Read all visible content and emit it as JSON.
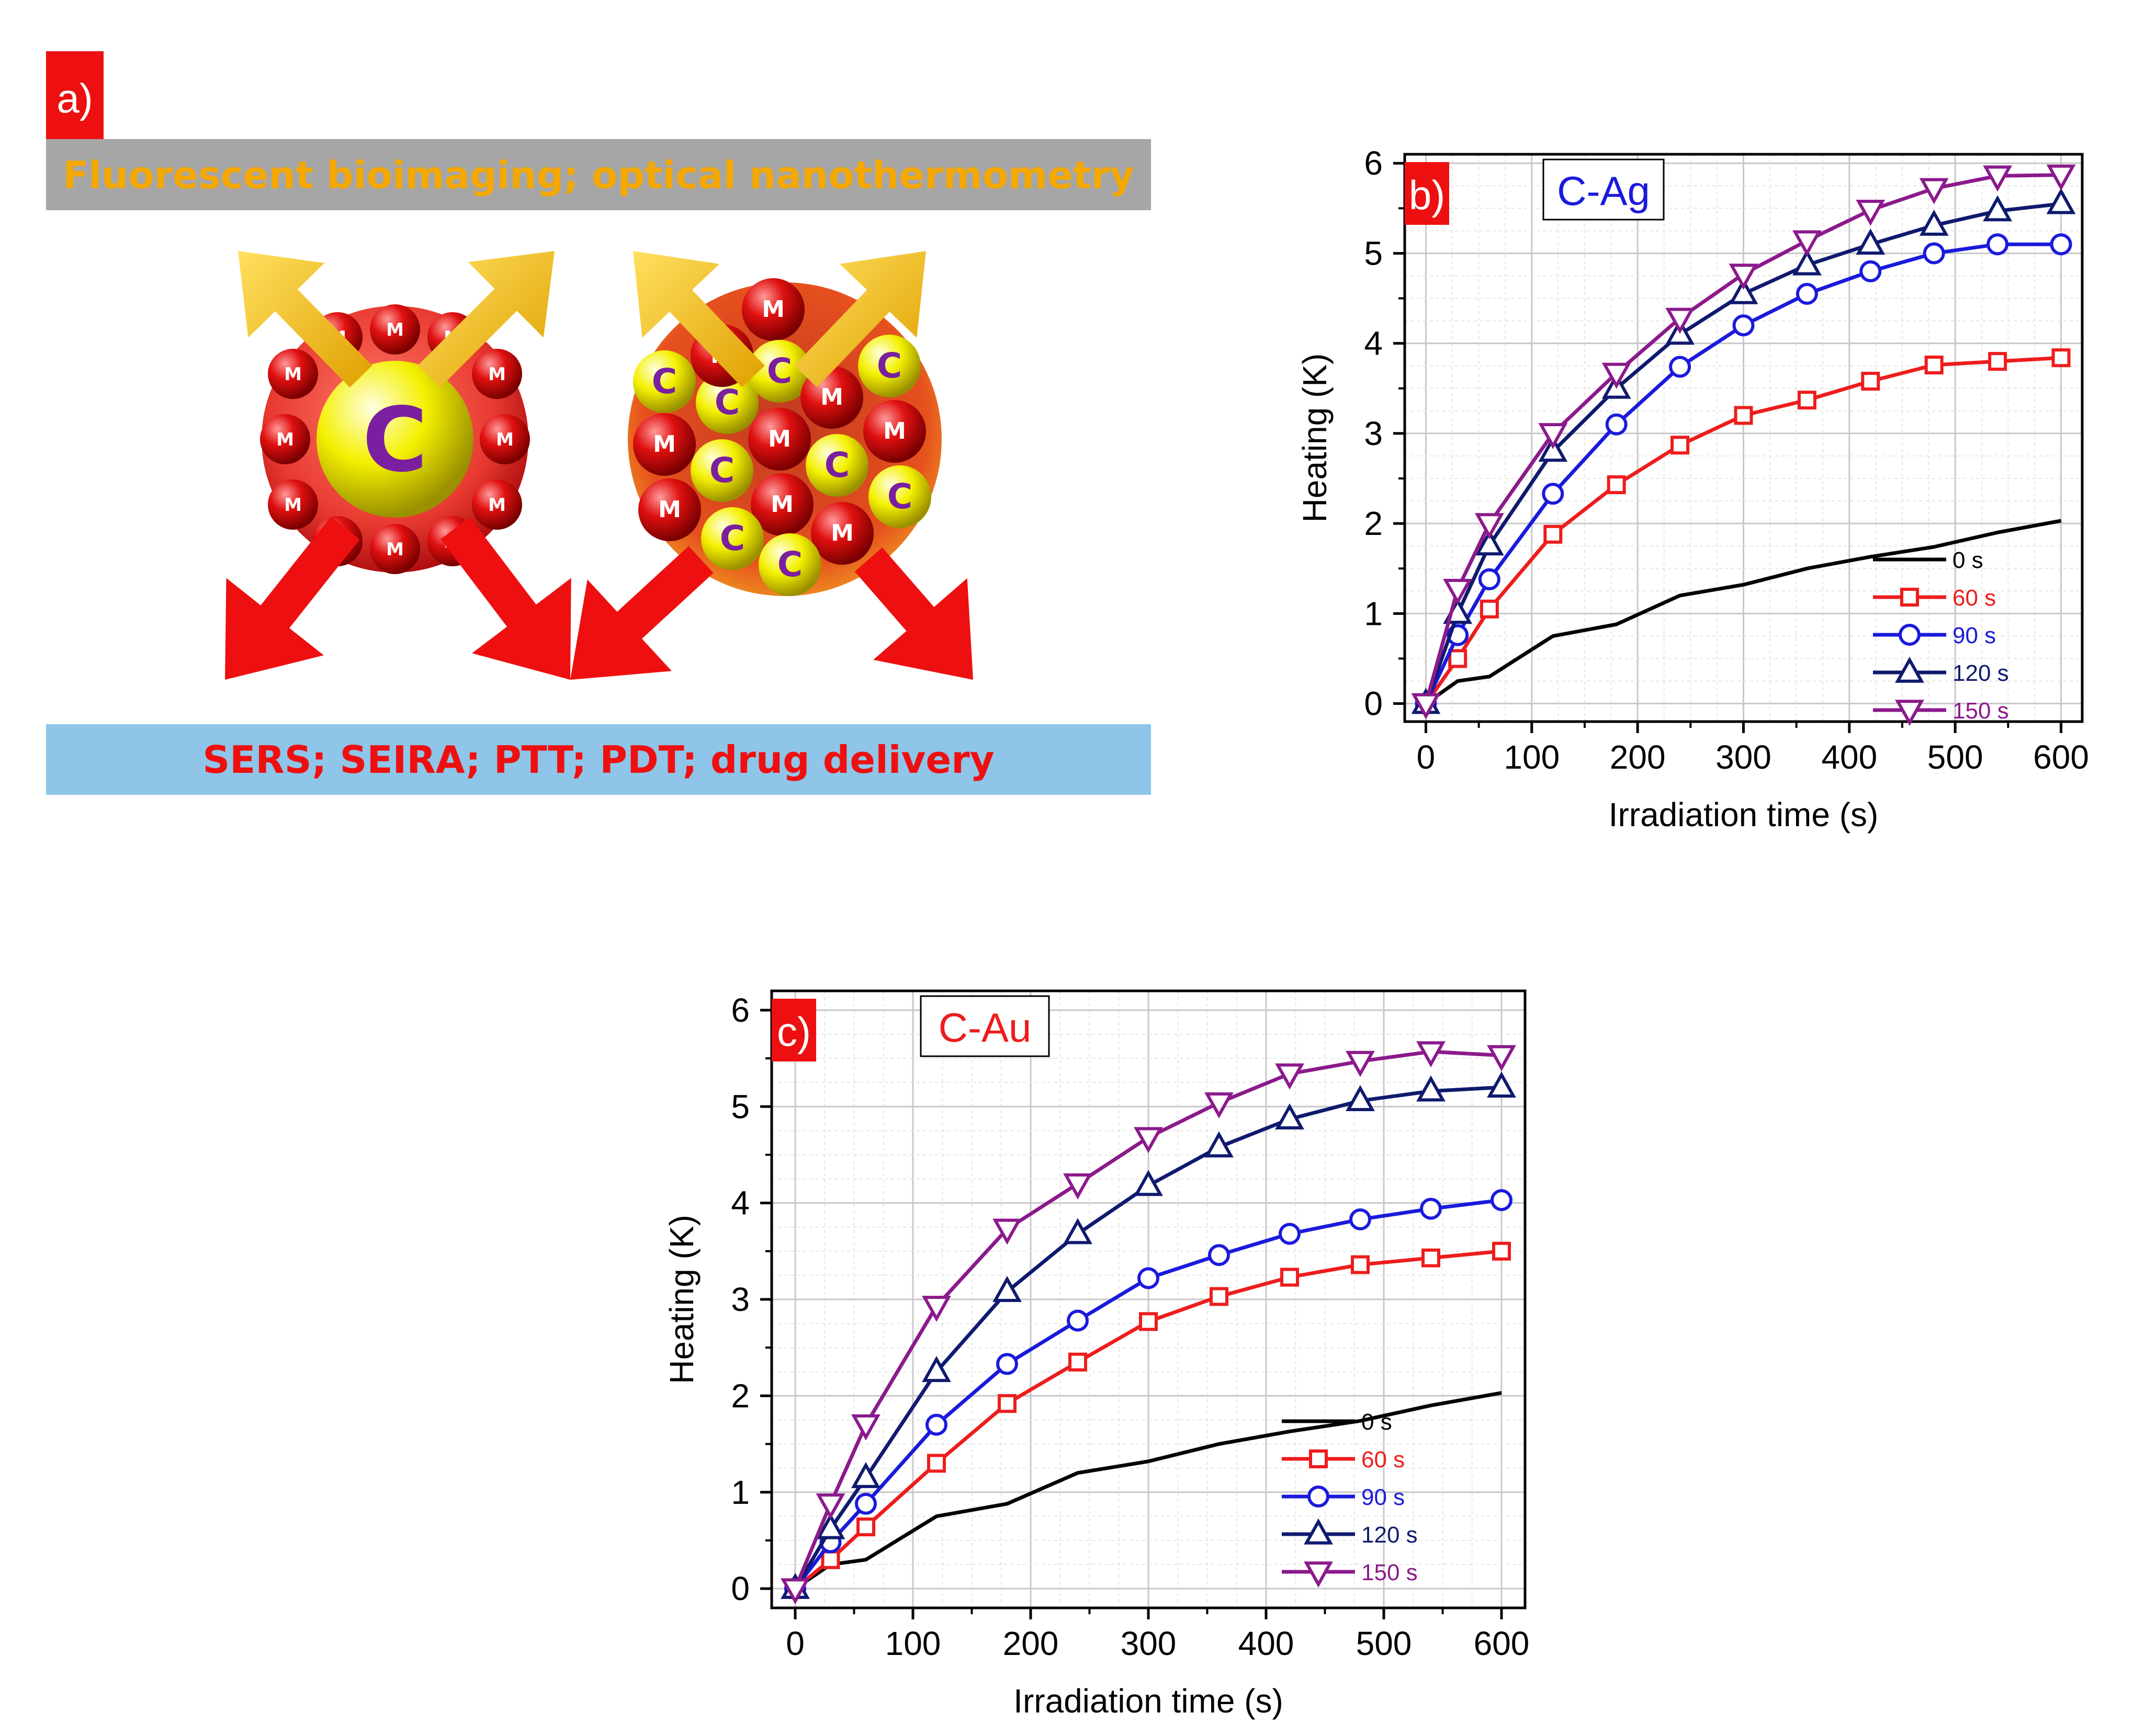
{
  "colors": {
    "s0": "#000000",
    "s60": "#ee1c1c",
    "s90": "#1a1adc",
    "s120": "#0f1a6e",
    "s150": "#8b1a8b",
    "tag_bg": "#ee1010",
    "banner_top_bg": "#a6a6a6",
    "banner_top_text": "#f5a800",
    "banner_bottom_bg": "#8ec5e8",
    "banner_bottom_text": "#ee1010"
  },
  "panel_a": {
    "tag": "a)",
    "top_banner": "Fluorescent bioimaging; optical nanothermometry",
    "bottom_banner": "SERS; SEIRA;  PTT; PDT; drug delivery",
    "core_letter": "C",
    "metal_letter": "M",
    "core_small_letter": "C"
  },
  "chart_data": [
    {
      "type": "line",
      "panel_tag": "b)",
      "title": "C-Ag",
      "xlabel": "Irradiation time (s)",
      "ylabel": "Heating (K)",
      "xlim": [
        -20,
        620
      ],
      "ylim": [
        -0.2,
        6.1
      ],
      "xticks": [
        0,
        100,
        200,
        300,
        400,
        500,
        600
      ],
      "yticks": [
        0,
        1,
        2,
        3,
        4,
        5,
        6
      ],
      "grid": true,
      "legend_position": "bottom-right",
      "series": [
        {
          "name": "0 s",
          "marker": "none",
          "x": [
            0,
            30,
            60,
            120,
            180,
            240,
            300,
            360,
            420,
            480,
            540,
            600
          ],
          "values": [
            0,
            0.25,
            0.3,
            0.75,
            0.88,
            1.2,
            1.32,
            1.5,
            1.63,
            1.74,
            1.9,
            2.03
          ]
        },
        {
          "name": "60 s",
          "marker": "square",
          "x": [
            0,
            30,
            60,
            120,
            180,
            240,
            300,
            360,
            420,
            480,
            540,
            600
          ],
          "values": [
            0,
            0.5,
            1.05,
            1.88,
            2.43,
            2.87,
            3.2,
            3.37,
            3.58,
            3.76,
            3.8,
            3.84
          ]
        },
        {
          "name": "90 s",
          "marker": "circle",
          "x": [
            0,
            30,
            60,
            120,
            180,
            240,
            300,
            360,
            420,
            480,
            540,
            600
          ],
          "values": [
            0,
            0.76,
            1.38,
            2.33,
            3.1,
            3.74,
            4.2,
            4.55,
            4.8,
            5.0,
            5.1,
            5.1
          ]
        },
        {
          "name": "120 s",
          "marker": "triangle-up",
          "x": [
            0,
            30,
            60,
            120,
            180,
            240,
            300,
            360,
            420,
            480,
            540,
            600
          ],
          "values": [
            0,
            1.0,
            1.76,
            2.8,
            3.5,
            4.1,
            4.55,
            4.87,
            5.1,
            5.31,
            5.47,
            5.55
          ]
        },
        {
          "name": "150 s",
          "marker": "triangle-down",
          "x": [
            0,
            30,
            60,
            120,
            180,
            240,
            300,
            360,
            420,
            480,
            540,
            600
          ],
          "values": [
            0,
            1.27,
            2.0,
            3.0,
            3.67,
            4.28,
            4.77,
            5.14,
            5.48,
            5.72,
            5.86,
            5.87
          ]
        }
      ]
    },
    {
      "type": "line",
      "panel_tag": "c)",
      "title": "C-Au",
      "xlabel": "Irradiation time (s)",
      "ylabel": "Heating (K)",
      "xlim": [
        -20,
        620
      ],
      "ylim": [
        -0.2,
        6.2
      ],
      "xticks": [
        0,
        100,
        200,
        300,
        400,
        500,
        600
      ],
      "yticks": [
        0,
        1,
        2,
        3,
        4,
        5,
        6
      ],
      "grid": true,
      "legend_position": "bottom-right",
      "series": [
        {
          "name": "0 s",
          "marker": "none",
          "x": [
            0,
            30,
            60,
            120,
            180,
            240,
            300,
            360,
            420,
            480,
            540,
            600
          ],
          "values": [
            0,
            0.25,
            0.3,
            0.75,
            0.88,
            1.2,
            1.32,
            1.5,
            1.63,
            1.74,
            1.9,
            2.03
          ]
        },
        {
          "name": "60 s",
          "marker": "square",
          "x": [
            0,
            30,
            60,
            120,
            180,
            240,
            300,
            360,
            420,
            480,
            540,
            600
          ],
          "values": [
            0,
            0.3,
            0.64,
            1.3,
            1.92,
            2.35,
            2.77,
            3.03,
            3.23,
            3.36,
            3.43,
            3.5
          ]
        },
        {
          "name": "90 s",
          "marker": "circle",
          "x": [
            0,
            30,
            60,
            120,
            180,
            240,
            300,
            360,
            420,
            480,
            540,
            600
          ],
          "values": [
            0,
            0.48,
            0.88,
            1.7,
            2.33,
            2.78,
            3.22,
            3.46,
            3.68,
            3.83,
            3.94,
            4.03
          ]
        },
        {
          "name": "120 s",
          "marker": "triangle-up",
          "x": [
            0,
            30,
            60,
            120,
            180,
            240,
            300,
            360,
            420,
            480,
            540,
            600
          ],
          "values": [
            0,
            0.62,
            1.15,
            2.25,
            3.08,
            3.68,
            4.18,
            4.58,
            4.87,
            5.06,
            5.16,
            5.2
          ]
        },
        {
          "name": "150 s",
          "marker": "triangle-down",
          "x": [
            0,
            30,
            60,
            120,
            180,
            240,
            300,
            360,
            420,
            480,
            540,
            600
          ],
          "values": [
            0,
            0.88,
            1.7,
            2.93,
            3.73,
            4.2,
            4.68,
            5.04,
            5.34,
            5.47,
            5.57,
            5.53
          ]
        }
      ]
    }
  ]
}
